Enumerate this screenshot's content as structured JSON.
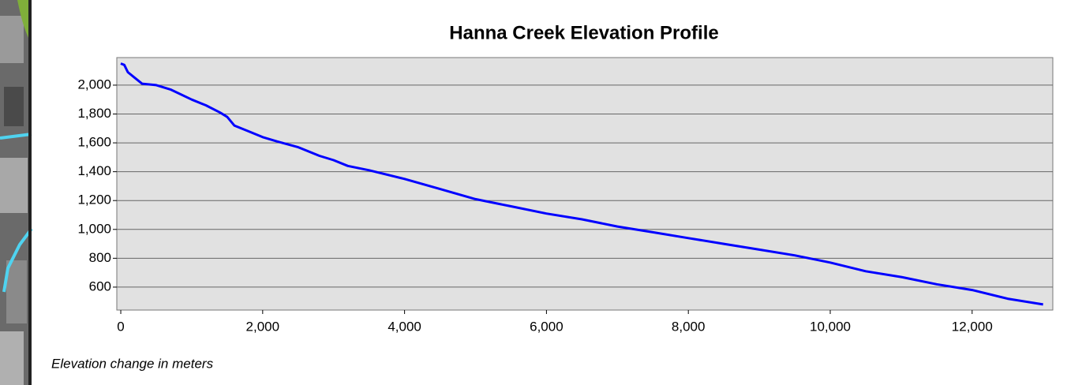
{
  "chart_data": {
    "type": "line",
    "title": "Hanna Creek Elevation Profile",
    "x_label": "Elevation change in meters",
    "x": [
      0,
      50,
      100,
      200,
      300,
      500,
      700,
      1000,
      1200,
      1400,
      1500,
      1600,
      1800,
      2000,
      2200,
      2500,
      2800,
      3000,
      3200,
      3500,
      4000,
      4500,
      5000,
      5500,
      6000,
      6500,
      7000,
      7500,
      8000,
      8500,
      9000,
      9500,
      10000,
      10500,
      11000,
      11500,
      12000,
      12500,
      13000
    ],
    "values": [
      2150,
      2140,
      2090,
      2050,
      2010,
      2000,
      1970,
      1900,
      1860,
      1810,
      1780,
      1720,
      1680,
      1640,
      1610,
      1570,
      1510,
      1480,
      1440,
      1410,
      1350,
      1280,
      1210,
      1160,
      1110,
      1070,
      1020,
      980,
      940,
      900,
      860,
      820,
      770,
      710,
      670,
      620,
      580,
      520,
      480
    ],
    "color": "#0000ff",
    "xlim": [
      -56,
      13137
    ],
    "xticks": [
      0,
      {
        "value": 2000,
        "label": "2,000"
      },
      {
        "value": 4000,
        "label": "4,000"
      },
      {
        "value": 6000,
        "label": "6,000"
      },
      {
        "value": 8000,
        "label": "8,000"
      },
      {
        "value": 10000,
        "label": "10,000"
      },
      {
        "value": 12000,
        "label": "12,000"
      }
    ],
    "ylim": [
      441,
      2191
    ],
    "yticks": [
      600,
      {
        "value": 800,
        "label": "800"
      },
      {
        "value": 1000,
        "label": "1,000"
      },
      {
        "value": 1200,
        "label": "1,200"
      },
      {
        "value": 1400,
        "label": "1,400"
      },
      {
        "value": 1600,
        "label": "1,600"
      },
      {
        "value": 1800,
        "label": "1,800"
      },
      {
        "value": 2000,
        "label": "2,000"
      }
    ],
    "grid": true
  }
}
